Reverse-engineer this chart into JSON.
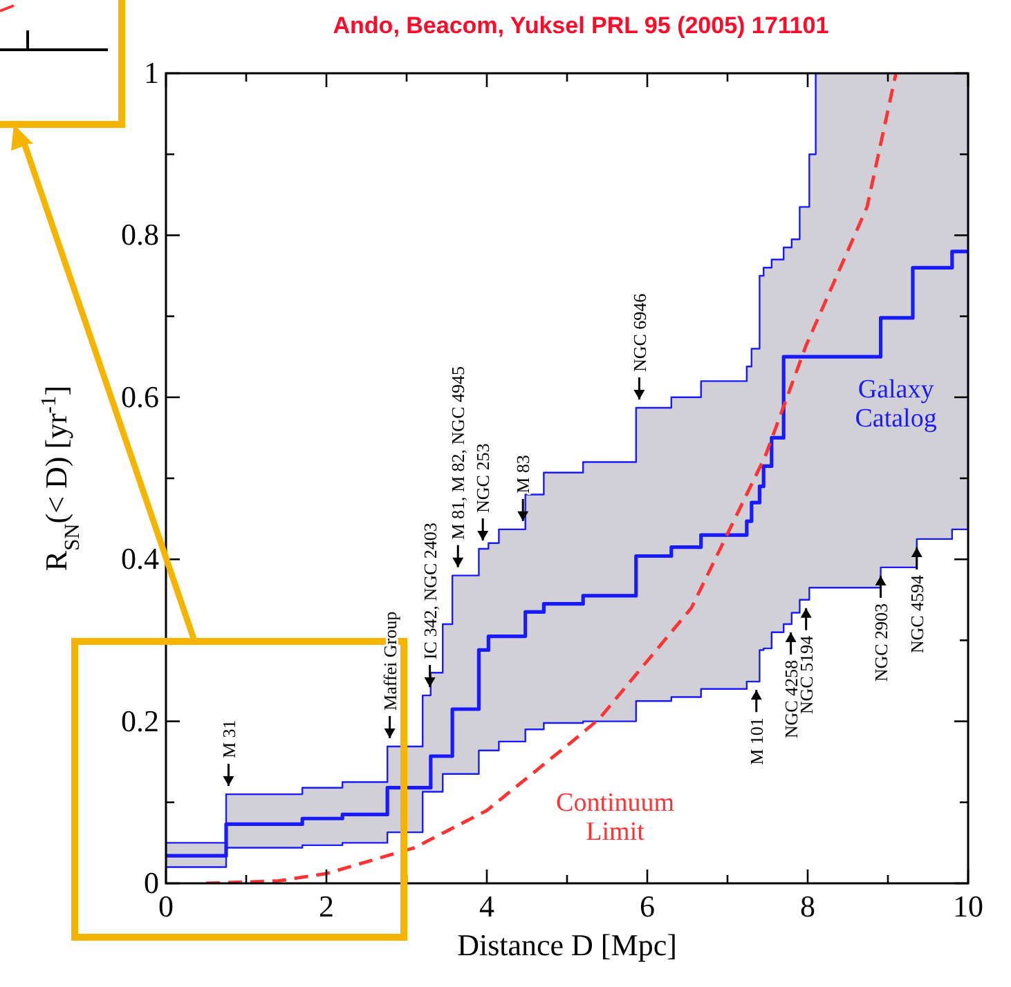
{
  "chart_data": {
    "type": "step",
    "title": "Ando, Beacom, Yuksel PRL 95 (2005) 171101",
    "xlabel": "Distance D [Mpc]",
    "ylabel": "R$_{SN}$(< D)  [yr$^{-1}$]",
    "xlim": [
      0,
      10
    ],
    "ylim": [
      0,
      1
    ],
    "xticks": [
      0,
      {
        "value": 1,
        "label": null
      },
      2,
      {
        "value": 3,
        "label": null
      },
      4,
      {
        "value": 5,
        "label": null
      },
      6,
      {
        "value": 7,
        "label": null
      },
      8,
      {
        "value": 9,
        "label": null
      },
      10
    ],
    "yticks": [
      0,
      {
        "value": 0.1,
        "label": null
      },
      0.2,
      {
        "value": 0.3,
        "label": null
      },
      0.4,
      {
        "value": 0.5,
        "label": null
      },
      0.6,
      {
        "value": 0.7,
        "label": null
      },
      0.8,
      {
        "value": 0.9,
        "label": null
      },
      1
    ],
    "grid": false,
    "series": [
      {
        "name": "Galaxy Catalog",
        "color": "#1a1aff",
        "x": [
          0,
          0.75,
          1.7,
          2.2,
          2.76,
          3.2,
          3.3,
          3.45,
          3.57,
          3.9,
          4.02,
          4.15,
          4.48,
          4.71,
          5.2,
          5.86,
          6.3,
          6.67,
          7.24,
          7.3,
          7.4,
          7.45,
          7.55,
          7.7,
          7.8,
          7.9,
          8.02,
          8.1,
          8.91,
          9.31,
          9.36,
          9.8,
          10
        ],
        "values": [
          0.034,
          0.073,
          0.08,
          0.085,
          0.118,
          0.118,
          0.157,
          0.157,
          0.215,
          0.288,
          0.305,
          0.305,
          0.335,
          0.345,
          0.355,
          0.404,
          0.415,
          0.43,
          0.447,
          0.47,
          0.49,
          0.515,
          0.55,
          0.65,
          0.65,
          0.65,
          0.65,
          0.65,
          0.698,
          0.76,
          0.76,
          0.78,
          0.78
        ],
        "upper": [
          0.05,
          0.11,
          0.118,
          0.125,
          0.169,
          0.232,
          0.26,
          0.32,
          0.38,
          0.413,
          0.42,
          0.437,
          0.48,
          0.507,
          0.52,
          0.587,
          0.6,
          0.62,
          0.638,
          0.66,
          0.75,
          0.76,
          0.77,
          0.785,
          0.795,
          0.835,
          0.9,
          1,
          1,
          1,
          1,
          1,
          1
        ],
        "lower": [
          0.02,
          0.044,
          0.047,
          0.05,
          0.063,
          0.113,
          0.113,
          0.135,
          0.135,
          0.164,
          0.164,
          0.175,
          0.19,
          0.198,
          0.2,
          0.225,
          0.23,
          0.24,
          0.249,
          0.249,
          0.288,
          0.29,
          0.31,
          0.32,
          0.334,
          0.35,
          0.365,
          0.365,
          0.39,
          0.39,
          0.425,
          0.437,
          0.437
        ]
      },
      {
        "name": "Continuum Limit",
        "type": "line",
        "color": "#ff3333",
        "line_style": "dashed",
        "x": [
          0.5,
          1.4,
          2,
          3.1,
          4,
          5.05,
          5.4,
          6.55,
          7.47,
          7.98,
          8.74,
          9.1
        ],
        "values": [
          0,
          0.003,
          0.012,
          0.044,
          0.09,
          0.174,
          0.203,
          0.34,
          0.527,
          0.664,
          0.835,
          1
        ]
      }
    ],
    "annotations": [
      {
        "text": "M 31",
        "x": 0.78,
        "y": 0.11
      },
      {
        "text": "Maffei Group",
        "x": 2.79,
        "y": 0.169
      },
      {
        "text": "IC 342, NGC 2403",
        "x": 3.29,
        "y": 0.232
      },
      {
        "text": "M 81, M 82, NGC 4945",
        "x": 3.64,
        "y": 0.38
      },
      {
        "text": "NGC 253",
        "x": 3.95,
        "y": 0.413
      },
      {
        "text": "M 83",
        "x": 4.45,
        "y": 0.437
      },
      {
        "text": "NGC 6946",
        "x": 5.9,
        "y": 0.587
      },
      {
        "text": "M 101",
        "x": 7.36,
        "y": 0.249
      },
      {
        "text": "NGC 4258",
        "x": 7.79,
        "y": 0.32
      },
      {
        "text": "NGC 5194",
        "x": 7.98,
        "y": 0.35
      },
      {
        "text": "NGC 2903",
        "x": 8.91,
        "y": 0.39
      },
      {
        "text": "NGC 4594",
        "x": 9.36,
        "y": 0.425
      }
    ]
  }
}
